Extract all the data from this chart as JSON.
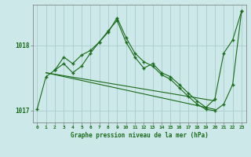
{
  "bg_color": "#cce8e8",
  "line_color": "#1a6b1a",
  "grid_color": "#aacccc",
  "title": "Graphe pression niveau de la mer (hPa)",
  "xlim": [
    -0.5,
    23.5
  ],
  "ylim": [
    1016.82,
    1018.62
  ],
  "yticks": [
    1017,
    1018
  ],
  "xticks": [
    0,
    1,
    2,
    3,
    4,
    5,
    6,
    7,
    8,
    9,
    10,
    11,
    12,
    13,
    14,
    15,
    16,
    17,
    18,
    19,
    20,
    21,
    22,
    23
  ],
  "series": [
    {
      "x": [
        0,
        1,
        2,
        3,
        4,
        5,
        6,
        7,
        8,
        9,
        10,
        11,
        12,
        13,
        14,
        15,
        16,
        17,
        18,
        19,
        20,
        21,
        22,
        23
      ],
      "y": [
        1017.02,
        1017.52,
        1017.62,
        1017.82,
        1017.72,
        1017.85,
        1017.92,
        1018.05,
        1018.22,
        1018.38,
        1018.05,
        1017.82,
        1017.65,
        1017.72,
        1017.58,
        1017.52,
        1017.4,
        1017.27,
        1017.15,
        1017.05,
        1017.18,
        1017.88,
        1018.08,
        1018.52
      ]
    },
    {
      "x": [
        2,
        3,
        4,
        5,
        6,
        7,
        8,
        9,
        10,
        11,
        12,
        13,
        14,
        15,
        16,
        17,
        18,
        19,
        20,
        21,
        22,
        23
      ],
      "y": [
        1017.62,
        1017.72,
        1017.58,
        1017.68,
        1017.88,
        1018.05,
        1018.2,
        1018.42,
        1018.12,
        1017.88,
        1017.75,
        1017.68,
        1017.55,
        1017.48,
        1017.35,
        1017.22,
        1017.1,
        1017.02,
        1017.0,
        1017.1,
        1017.4,
        1018.52
      ]
    },
    {
      "x": [
        1,
        20
      ],
      "y": [
        1017.58,
        1017.02
      ]
    },
    {
      "x": [
        1,
        20
      ],
      "y": [
        1017.58,
        1017.15
      ]
    }
  ]
}
